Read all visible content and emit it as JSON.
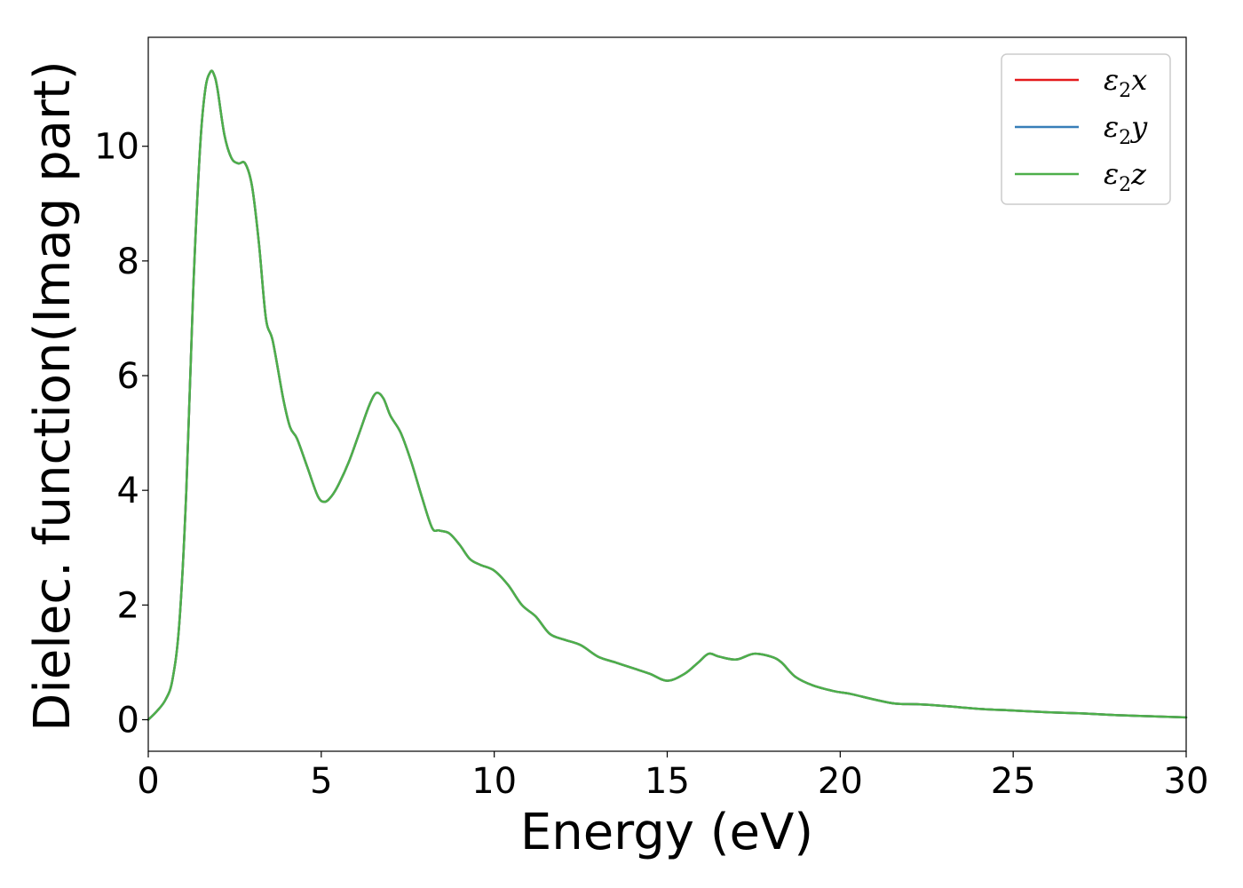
{
  "chart_data": {
    "type": "line",
    "xlabel": "Energy (eV)",
    "ylabel": "Dielec. function(Imag part)",
    "xlim": [
      0,
      30
    ],
    "ylim": [
      -0.55,
      11.9
    ],
    "xticks": [
      0,
      5,
      10,
      15,
      20,
      25,
      30
    ],
    "xtick_labels": [
      "0",
      "5",
      "10",
      "15",
      "20",
      "25",
      "30"
    ],
    "yticks": [
      0,
      2,
      4,
      6,
      8,
      10
    ],
    "ytick_labels": [
      "0",
      "2",
      "4",
      "6",
      "8",
      "10"
    ],
    "grid": false,
    "legend_position": "top-right",
    "x": [
      0,
      0.25,
      0.5,
      0.7,
      0.9,
      1.1,
      1.3,
      1.5,
      1.65,
      1.8,
      1.9,
      2.0,
      2.2,
      2.4,
      2.6,
      2.8,
      3.0,
      3.2,
      3.4,
      3.6,
      3.9,
      4.1,
      4.3,
      4.6,
      4.9,
      5.1,
      5.3,
      5.5,
      5.8,
      6.1,
      6.4,
      6.6,
      6.8,
      7.0,
      7.3,
      7.6,
      7.9,
      8.2,
      8.4,
      8.7,
      9.0,
      9.3,
      9.6,
      10.0,
      10.4,
      10.8,
      11.2,
      11.6,
      12.0,
      12.5,
      13.0,
      13.5,
      14.0,
      14.5,
      15.0,
      15.5,
      15.9,
      16.2,
      16.5,
      17.0,
      17.5,
      18.0,
      18.3,
      18.7,
      19.2,
      19.8,
      20.3,
      21.0,
      21.6,
      22.2,
      23.0,
      24.0,
      25.0,
      26.0,
      27.0,
      28.0,
      29.0,
      30.0
    ],
    "series": [
      {
        "name": "x",
        "color": "#e41a1c",
        "y": [
          0.0,
          0.15,
          0.35,
          0.7,
          1.7,
          4.0,
          7.5,
          10.0,
          11.0,
          11.3,
          11.25,
          11.0,
          10.2,
          9.8,
          9.7,
          9.7,
          9.3,
          8.3,
          7.0,
          6.6,
          5.6,
          5.1,
          4.9,
          4.4,
          3.9,
          3.8,
          3.9,
          4.1,
          4.5,
          5.0,
          5.5,
          5.7,
          5.6,
          5.3,
          5.0,
          4.5,
          3.9,
          3.35,
          3.3,
          3.25,
          3.05,
          2.8,
          2.7,
          2.6,
          2.35,
          2.0,
          1.8,
          1.5,
          1.4,
          1.3,
          1.1,
          1.0,
          0.9,
          0.8,
          0.68,
          0.8,
          1.0,
          1.15,
          1.1,
          1.05,
          1.15,
          1.1,
          1.0,
          0.75,
          0.6,
          0.5,
          0.45,
          0.35,
          0.28,
          0.27,
          0.24,
          0.19,
          0.16,
          0.13,
          0.11,
          0.08,
          0.06,
          0.04
        ]
      },
      {
        "name": "y",
        "color": "#377eb8",
        "y": [
          0.0,
          0.15,
          0.35,
          0.7,
          1.7,
          4.0,
          7.5,
          10.0,
          11.0,
          11.3,
          11.25,
          11.0,
          10.2,
          9.8,
          9.7,
          9.7,
          9.3,
          8.3,
          7.0,
          6.6,
          5.6,
          5.1,
          4.9,
          4.4,
          3.9,
          3.8,
          3.9,
          4.1,
          4.5,
          5.0,
          5.5,
          5.7,
          5.6,
          5.3,
          5.0,
          4.5,
          3.9,
          3.35,
          3.3,
          3.25,
          3.05,
          2.8,
          2.7,
          2.6,
          2.35,
          2.0,
          1.8,
          1.5,
          1.4,
          1.3,
          1.1,
          1.0,
          0.9,
          0.8,
          0.68,
          0.8,
          1.0,
          1.15,
          1.1,
          1.05,
          1.15,
          1.1,
          1.0,
          0.75,
          0.6,
          0.5,
          0.45,
          0.35,
          0.28,
          0.27,
          0.24,
          0.19,
          0.16,
          0.13,
          0.11,
          0.08,
          0.06,
          0.04
        ]
      },
      {
        "name": "z",
        "color": "#4daf4a",
        "y": [
          0.0,
          0.15,
          0.35,
          0.7,
          1.7,
          4.0,
          7.5,
          10.0,
          11.0,
          11.3,
          11.25,
          11.0,
          10.2,
          9.8,
          9.7,
          9.7,
          9.3,
          8.3,
          7.0,
          6.6,
          5.6,
          5.1,
          4.9,
          4.4,
          3.9,
          3.8,
          3.9,
          4.1,
          4.5,
          5.0,
          5.5,
          5.7,
          5.6,
          5.3,
          5.0,
          4.5,
          3.9,
          3.35,
          3.3,
          3.25,
          3.05,
          2.8,
          2.7,
          2.6,
          2.35,
          2.0,
          1.8,
          1.5,
          1.4,
          1.3,
          1.1,
          1.0,
          0.9,
          0.8,
          0.68,
          0.8,
          1.0,
          1.15,
          1.1,
          1.05,
          1.15,
          1.1,
          1.0,
          0.75,
          0.6,
          0.5,
          0.45,
          0.35,
          0.28,
          0.27,
          0.24,
          0.19,
          0.16,
          0.13,
          0.11,
          0.08,
          0.06,
          0.04
        ]
      }
    ],
    "legend": [
      {
        "symbol": "ε",
        "sub": "2",
        "suffix": "x"
      },
      {
        "symbol": "ε",
        "sub": "2",
        "suffix": "y"
      },
      {
        "symbol": "ε",
        "sub": "2",
        "suffix": "z"
      }
    ]
  }
}
